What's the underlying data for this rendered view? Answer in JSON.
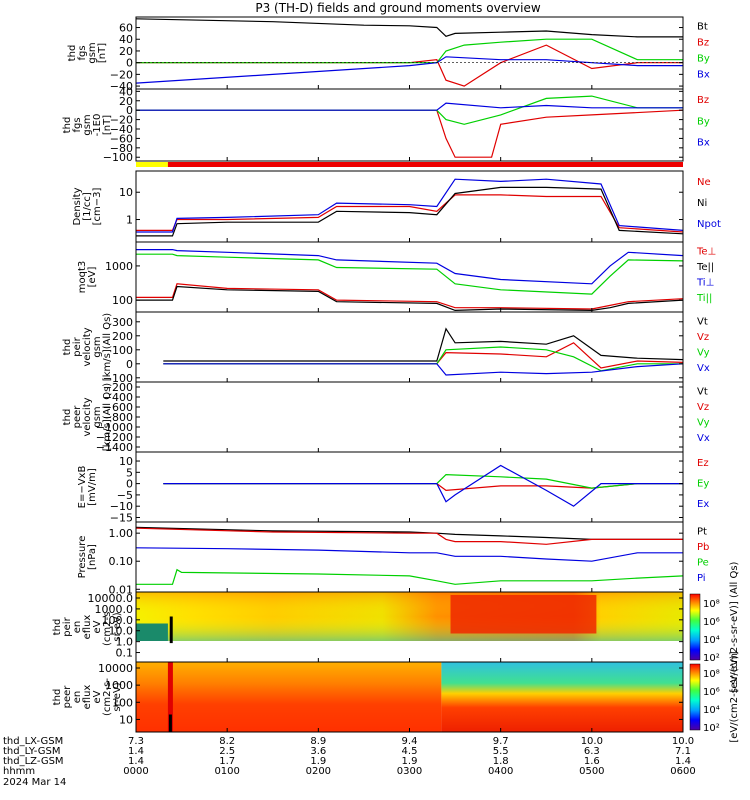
{
  "title": "P3 (TH-D) fields and ground moments overview",
  "colors": {
    "black": "#000000",
    "red": "#e00000",
    "green": "#00d000",
    "blue": "#0000e0",
    "bar_yellow": "#ffff00",
    "bar_red": "#ee0000"
  },
  "chart_data": [
    {
      "type": "line",
      "id": "fgs_gsm",
      "ylabel": [
        "thd",
        "fgs",
        "gsm",
        "[nT]"
      ],
      "yticks": [
        "60",
        "40",
        "20",
        "0",
        "−20",
        "−40"
      ],
      "ylim": [
        -45,
        78
      ],
      "legend": [
        {
          "name": "Bt",
          "color": "black"
        },
        {
          "name": "Bz",
          "color": "red"
        },
        {
          "name": "By",
          "color": "green"
        },
        {
          "name": "Bx",
          "color": "blue"
        }
      ],
      "series": [
        {
          "name": "Bt",
          "x": [
            0,
            1.5,
            2.5,
            3,
            3.3,
            3.4,
            3.5,
            4,
            4.5,
            5,
            5.5,
            6
          ],
          "y": [
            75,
            70,
            64,
            63,
            60,
            45,
            50,
            52,
            54,
            48,
            44,
            44
          ]
        },
        {
          "name": "Bz",
          "x": [
            0,
            3,
            3.3,
            3.4,
            3.6,
            4,
            4.5,
            5,
            5.5,
            6
          ],
          "y": [
            0,
            0,
            5,
            -30,
            -40,
            0,
            30,
            -10,
            0,
            0
          ]
        },
        {
          "name": "By",
          "x": [
            0,
            3,
            3.3,
            3.4,
            3.6,
            4,
            4.5,
            5,
            5.5,
            6
          ],
          "y": [
            0,
            0,
            0,
            20,
            30,
            35,
            40,
            40,
            5,
            5
          ]
        },
        {
          "name": "Bx",
          "x": [
            0,
            1.5,
            3,
            3.3,
            3.4,
            4,
            4.5,
            5,
            5.5,
            6
          ],
          "y": [
            -35,
            -20,
            -5,
            0,
            10,
            5,
            5,
            0,
            -5,
            -5
          ]
        }
      ]
    },
    {
      "type": "line",
      "id": "fgs_gsm_zoom",
      "ylabel": [
        "thd",
        "fgs",
        "gsm",
        "-1E0",
        "[nT]"
      ],
      "yticks": [
        "40",
        "20",
        "0",
        "−20",
        "−40",
        "−60",
        "−80",
        "−100"
      ],
      "ylim": [
        -108,
        45
      ],
      "legend": [
        {
          "name": "Bz",
          "color": "red"
        },
        {
          "name": "By",
          "color": "green"
        },
        {
          "name": "Bx",
          "color": "blue"
        }
      ],
      "series": [
        {
          "name": "Bz",
          "x": [
            0,
            3.3,
            3.4,
            3.5,
            3.9,
            4,
            4.5,
            5,
            6
          ],
          "y": [
            0,
            0,
            -60,
            -100,
            -100,
            -30,
            -15,
            -10,
            0
          ]
        },
        {
          "name": "By",
          "x": [
            0,
            3.3,
            3.4,
            3.6,
            4,
            4.5,
            5,
            5.5,
            6
          ],
          "y": [
            0,
            0,
            -20,
            -30,
            -10,
            25,
            30,
            5,
            5
          ]
        },
        {
          "name": "Bx",
          "x": [
            0,
            3.3,
            3.4,
            4,
            4.5,
            5,
            6
          ],
          "y": [
            0,
            0,
            15,
            5,
            10,
            5,
            5
          ]
        }
      ]
    },
    {
      "type": "line",
      "id": "density",
      "ylabel": [
        "Density",
        "[1/cc]",
        "[cm−3]"
      ],
      "yticks": [
        "10",
        "1"
      ],
      "ylim": [
        0.15,
        60
      ],
      "log": true,
      "legend": [
        {
          "name": "Ne",
          "color": "red"
        },
        {
          "name": "Ni",
          "color": "black"
        },
        {
          "name": "Npot",
          "color": "blue"
        }
      ],
      "series": [
        {
          "name": "Ne",
          "x": [
            0,
            0.4,
            0.45,
            1,
            2,
            2.2,
            3,
            3.3,
            3.5,
            4,
            4.5,
            5.1,
            5.3,
            6
          ],
          "y": [
            0.4,
            0.4,
            1,
            1,
            1.2,
            3,
            3,
            2,
            8,
            8,
            7,
            7,
            0.5,
            0.35
          ]
        },
        {
          "name": "Ni",
          "x": [
            0,
            0.4,
            0.45,
            1,
            2,
            2.2,
            3,
            3.3,
            3.5,
            4,
            4.5,
            5.1,
            5.3,
            6
          ],
          "y": [
            0.25,
            0.25,
            0.7,
            0.8,
            0.8,
            2,
            1.8,
            1.5,
            9,
            15,
            15,
            13,
            0.4,
            0.3
          ]
        },
        {
          "name": "Npot",
          "x": [
            0,
            0.4,
            0.45,
            1,
            2,
            2.2,
            3,
            3.3,
            3.5,
            4,
            4.5,
            5.1,
            5.3,
            6
          ],
          "y": [
            0.35,
            0.35,
            1.1,
            1.2,
            1.5,
            4,
            3.5,
            3,
            30,
            25,
            30,
            20,
            0.6,
            0.4
          ]
        }
      ]
    },
    {
      "type": "line",
      "id": "temperature",
      "ylabel": [
        "moqt3",
        "[eV]"
      ],
      "yticks": [
        "1000",
        "100"
      ],
      "ylim": [
        45,
        5000
      ],
      "log": true,
      "legend": [
        {
          "name": "Te⊥",
          "color": "red"
        },
        {
          "name": "Te||",
          "color": "black"
        },
        {
          "name": "Ti⊥",
          "color": "blue"
        },
        {
          "name": "Ti||",
          "color": "green"
        }
      ],
      "series": [
        {
          "name": "Te⊥",
          "x": [
            0,
            0.4,
            0.45,
            1,
            2,
            2.2,
            3.3,
            3.5,
            4,
            5,
            5.2,
            5.4,
            6
          ],
          "y": [
            120,
            120,
            300,
            220,
            200,
            100,
            90,
            60,
            60,
            55,
            70,
            90,
            110
          ]
        },
        {
          "name": "Te||",
          "x": [
            0,
            0.4,
            0.45,
            1,
            2,
            2.2,
            3.3,
            3.5,
            4,
            5,
            5.2,
            5.4,
            6
          ],
          "y": [
            100,
            100,
            250,
            200,
            180,
            90,
            80,
            50,
            55,
            50,
            60,
            80,
            100
          ]
        },
        {
          "name": "Ti⊥",
          "x": [
            0,
            0.4,
            0.45,
            1,
            2,
            2.2,
            3.3,
            3.5,
            4,
            5,
            5.2,
            5.4,
            6
          ],
          "y": [
            3000,
            3000,
            2800,
            2500,
            2000,
            1500,
            1200,
            600,
            400,
            300,
            1000,
            2500,
            2000
          ]
        },
        {
          "name": "Ti||",
          "x": [
            0,
            0.4,
            0.45,
            1,
            2,
            2.2,
            3.3,
            3.5,
            4,
            5,
            5.2,
            5.4,
            6
          ],
          "y": [
            2200,
            2200,
            2000,
            1800,
            1500,
            900,
            800,
            300,
            200,
            150,
            500,
            1500,
            1400
          ]
        }
      ]
    },
    {
      "type": "line",
      "id": "peir_velocity",
      "ylabel": [
        "thd",
        "peir",
        "velocity",
        "gsm",
        "[km/s](All Qs)"
      ],
      "yticks": [
        "300",
        "200",
        "100",
        "0",
        "−100"
      ],
      "ylim": [
        -130,
        370
      ],
      "legend": [
        {
          "name": "Vt",
          "color": "black"
        },
        {
          "name": "Vz",
          "color": "red"
        },
        {
          "name": "Vy",
          "color": "green"
        },
        {
          "name": "Vx",
          "color": "blue"
        }
      ],
      "series": [
        {
          "name": "Vt",
          "x": [
            0.3,
            3.3,
            3.4,
            3.5,
            4,
            4.5,
            4.8,
            5.1,
            5.5,
            6
          ],
          "y": [
            20,
            20,
            250,
            150,
            160,
            140,
            200,
            60,
            40,
            30
          ]
        },
        {
          "name": "Vz",
          "x": [
            0.3,
            3.3,
            3.4,
            4,
            4.5,
            4.8,
            5.1,
            5.5,
            6
          ],
          "y": [
            0,
            0,
            80,
            70,
            50,
            150,
            -30,
            20,
            10
          ]
        },
        {
          "name": "Vy",
          "x": [
            0.3,
            3.3,
            3.4,
            4,
            4.5,
            4.8,
            5.1,
            5.5,
            6
          ],
          "y": [
            0,
            0,
            100,
            120,
            100,
            50,
            -50,
            0,
            0
          ]
        },
        {
          "name": "Vx",
          "x": [
            0.3,
            3.3,
            3.4,
            4,
            4.5,
            5,
            5.5,
            6
          ],
          "y": [
            0,
            0,
            -80,
            -60,
            -70,
            -60,
            -20,
            0
          ]
        }
      ]
    },
    {
      "type": "line",
      "id": "peer_velocity",
      "ylabel": [
        "thd",
        "peer",
        "velocity",
        "gsm",
        "[km/s](All Qs)"
      ],
      "yticks": [
        "−200",
        "−400",
        "−600",
        "−800",
        "−1000",
        "−1200",
        "−1400"
      ],
      "ylim": [
        -1500,
        -100
      ],
      "legend": [
        {
          "name": "Vt",
          "color": "black"
        },
        {
          "name": "Vz",
          "color": "red"
        },
        {
          "name": "Vy",
          "color": "green"
        },
        {
          "name": "Vx",
          "color": "blue"
        }
      ],
      "series": []
    },
    {
      "type": "line",
      "id": "efield",
      "ylabel": [
        "E=−VxB",
        "[mV/m]"
      ],
      "yticks": [
        "10",
        "5",
        "0",
        "−5",
        "−10",
        "−15"
      ],
      "ylim": [
        -17,
        14
      ],
      "legend": [
        {
          "name": "Ez",
          "color": "red"
        },
        {
          "name": "Ey",
          "color": "green"
        },
        {
          "name": "Ex",
          "color": "blue"
        }
      ],
      "series": [
        {
          "name": "Ez",
          "x": [
            0.3,
            3.3,
            3.4,
            4,
            4.5,
            5,
            5.5,
            6
          ],
          "y": [
            0,
            0,
            -3,
            -1,
            -1,
            -2,
            0,
            0
          ]
        },
        {
          "name": "Ey",
          "x": [
            0.3,
            3.3,
            3.4,
            4,
            4.5,
            5,
            5.5,
            6
          ],
          "y": [
            0,
            0,
            4,
            3,
            2,
            -2,
            0,
            0
          ]
        },
        {
          "name": "Ex",
          "x": [
            0.3,
            3.3,
            3.4,
            3.5,
            4,
            4.5,
            4.8,
            5.1,
            6
          ],
          "y": [
            0,
            0,
            -8,
            -5,
            8,
            -3,
            -10,
            0,
            0
          ]
        }
      ]
    },
    {
      "type": "line",
      "id": "pressure",
      "ylabel": [
        "Pressure",
        "[nPa]"
      ],
      "yticks": [
        "1.00",
        "0.10",
        "0.01"
      ],
      "ylim": [
        0.008,
        2.5
      ],
      "log": true,
      "legend": [
        {
          "name": "Pt",
          "color": "black"
        },
        {
          "name": "Pb",
          "color": "red"
        },
        {
          "name": "Pe",
          "color": "green"
        },
        {
          "name": "Pi",
          "color": "blue"
        }
      ],
      "series": [
        {
          "name": "Pt",
          "x": [
            0,
            1.5,
            3,
            3.3,
            3.5,
            4,
            4.5,
            5,
            5.5,
            6
          ],
          "y": [
            1.6,
            1.2,
            1.1,
            1.0,
            0.9,
            0.8,
            0.7,
            0.6,
            0.6,
            0.6
          ]
        },
        {
          "name": "Pb",
          "x": [
            0,
            1.5,
            3,
            3.3,
            3.4,
            3.5,
            4,
            4.5,
            5,
            5.5,
            6
          ],
          "y": [
            1.5,
            1.1,
            1.0,
            1.0,
            0.6,
            0.5,
            0.5,
            0.4,
            0.6,
            0.6,
            0.6
          ]
        },
        {
          "name": "Pe",
          "x": [
            0,
            0.4,
            0.45,
            0.5,
            2,
            3,
            3.3,
            3.5,
            4,
            5,
            5.5,
            6
          ],
          "y": [
            0.015,
            0.015,
            0.05,
            0.04,
            0.035,
            0.03,
            0.02,
            0.015,
            0.02,
            0.02,
            0.025,
            0.03
          ]
        },
        {
          "name": "Pi",
          "x": [
            0,
            1,
            2,
            3,
            3.3,
            3.5,
            4,
            4.5,
            5,
            5.5,
            6
          ],
          "y": [
            0.3,
            0.28,
            0.25,
            0.2,
            0.2,
            0.15,
            0.15,
            0.12,
            0.1,
            0.2,
            0.2
          ]
        }
      ]
    },
    {
      "type": "heatmap",
      "id": "peir_spectrogram",
      "ylabel": [
        "thd",
        "peir",
        "en",
        "eflux",
        "eV",
        "(cm2-s-",
        "sr-eV)"
      ],
      "yticks": [
        "10000.0",
        "1000.0",
        "100.0",
        "10.0",
        "1.0",
        "0.1"
      ],
      "zlabel": "[eV/(cm2-s-sr-eV)] (All Qs)",
      "zticks": [
        "10⁸",
        "10⁶",
        "10⁴",
        "10²"
      ]
    },
    {
      "type": "heatmap",
      "id": "peer_spectrogram",
      "ylabel": [
        "thd",
        "peer",
        "en",
        "eflux",
        "eV",
        "(cm2-s-",
        "sr-eV)"
      ],
      "yticks": [
        "10000",
        "1000",
        "100",
        "10"
      ],
      "zlabel": "[eV/(cm2-s-sr-eV)]",
      "zticks": [
        "10⁸",
        "10⁶",
        "10⁴",
        "10²"
      ]
    }
  ],
  "xaxis": {
    "rows": [
      {
        "label": "thd_LX-GSM",
        "values": [
          "7.3",
          "8.2",
          "8.9",
          "9.4",
          "9.7",
          "10.0",
          "10.0"
        ]
      },
      {
        "label": "thd_LY-GSM",
        "values": [
          "1.4",
          "2.5",
          "3.6",
          "4.5",
          "5.5",
          "6.3",
          "7.1"
        ]
      },
      {
        "label": "thd_LZ-GSM",
        "values": [
          "1.4",
          "1.7",
          "1.9",
          "1.9",
          "1.8",
          "1.6",
          "1.4"
        ]
      },
      {
        "label": "hhmm",
        "values": [
          "0000",
          "0100",
          "0200",
          "0300",
          "0400",
          "0500",
          "0600"
        ]
      }
    ],
    "date": "2024 Mar 14"
  }
}
